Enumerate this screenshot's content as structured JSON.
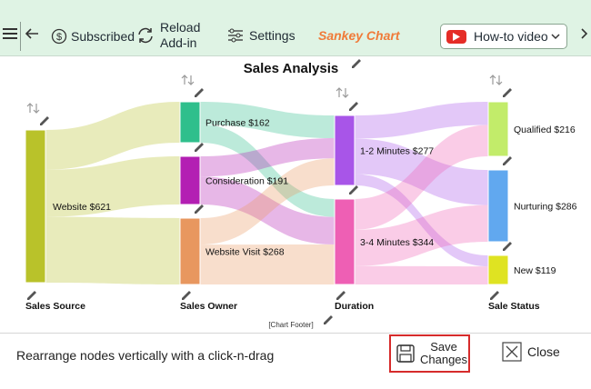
{
  "toolbar": {
    "subscribed_label": "Subscribed",
    "reload_label_line1": "Reload",
    "reload_label_line2": "Add-in",
    "settings_label": "Settings",
    "app_title": "Sankey Chart",
    "howto_label": "How-to video"
  },
  "chart_data": {
    "type": "sankey",
    "title": "Sales Analysis",
    "footer": "[Chart Footer]",
    "stages": [
      "Sales Source",
      "Sales Owner",
      "Duration",
      "Sale Status"
    ],
    "nodes": [
      {
        "id": "website",
        "stage": 0,
        "label": "Website $621",
        "value": 621,
        "color": "#b9c22a"
      },
      {
        "id": "purchase",
        "stage": 1,
        "label": "Purchase $162",
        "value": 162,
        "color": "#2fbf8c"
      },
      {
        "id": "consideration",
        "stage": 1,
        "label": "Consideration $191",
        "value": 191,
        "color": "#b31fb3"
      },
      {
        "id": "visit",
        "stage": 1,
        "label": "Website Visit $268",
        "value": 268,
        "color": "#e8975f"
      },
      {
        "id": "m12",
        "stage": 2,
        "label": "1-2 Minutes $277",
        "value": 277,
        "color": "#a855e8"
      },
      {
        "id": "m34",
        "stage": 2,
        "label": "3-4 Minutes $344",
        "value": 344,
        "color": "#ee5fb4"
      },
      {
        "id": "qualified",
        "stage": 3,
        "label": "Qualified $216",
        "value": 216,
        "color": "#c2ec6a"
      },
      {
        "id": "nurturing",
        "stage": 3,
        "label": "Nurturing $286",
        "value": 286,
        "color": "#61a8ef"
      },
      {
        "id": "new",
        "stage": 3,
        "label": "New $119",
        "value": 119,
        "color": "#dfe322"
      }
    ],
    "links": [
      {
        "source": "website",
        "target": "purchase",
        "value": 162
      },
      {
        "source": "website",
        "target": "consideration",
        "value": 191
      },
      {
        "source": "website",
        "target": "visit",
        "value": 268
      },
      {
        "source": "purchase",
        "target": "m12",
        "value": 90
      },
      {
        "source": "purchase",
        "target": "m34",
        "value": 72
      },
      {
        "source": "consideration",
        "target": "m12",
        "value": 80
      },
      {
        "source": "consideration",
        "target": "m34",
        "value": 111
      },
      {
        "source": "visit",
        "target": "m12",
        "value": 107
      },
      {
        "source": "visit",
        "target": "m34",
        "value": 161
      },
      {
        "source": "m12",
        "target": "qualified",
        "value": 92
      },
      {
        "source": "m12",
        "target": "nurturing",
        "value": 140
      },
      {
        "source": "m12",
        "target": "new",
        "value": 45
      },
      {
        "source": "m34",
        "target": "qualified",
        "value": 124
      },
      {
        "source": "m34",
        "target": "nurturing",
        "value": 146
      },
      {
        "source": "m34",
        "target": "new",
        "value": 74
      }
    ]
  },
  "footer_bar": {
    "hint": "Rearrange nodes vertically with a click-n-drag",
    "save_line1": "Save",
    "save_line2": "Changes",
    "close_label": "Close"
  }
}
